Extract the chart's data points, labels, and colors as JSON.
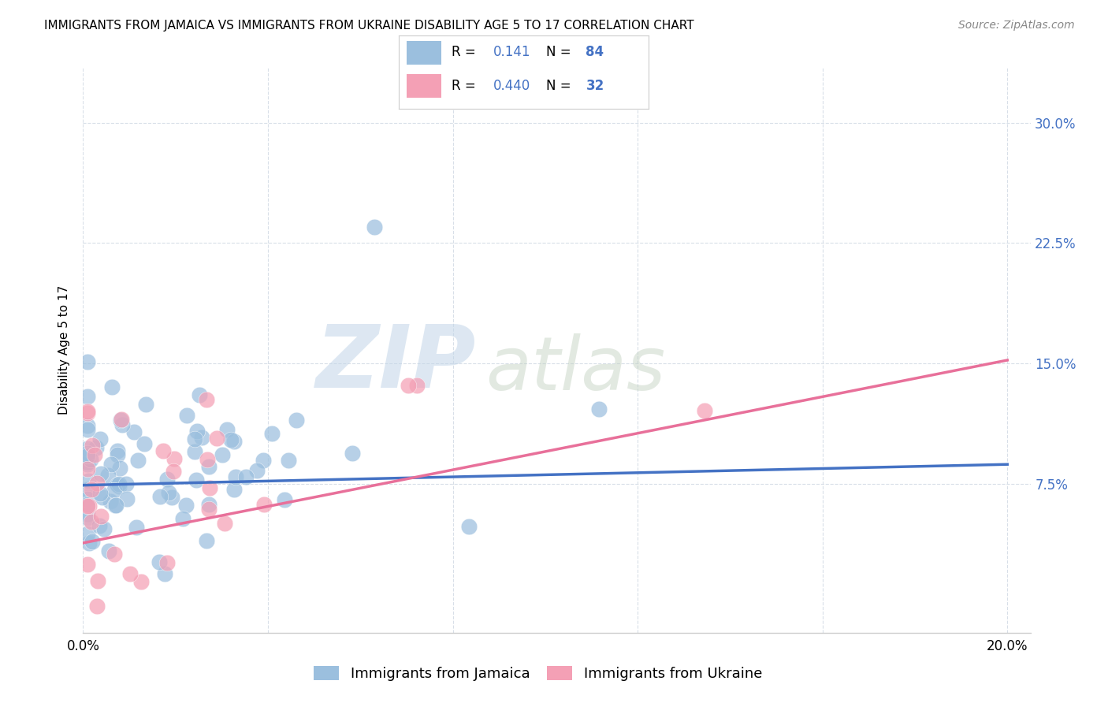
{
  "title": "IMMIGRANTS FROM JAMAICA VS IMMIGRANTS FROM UKRAINE DISABILITY AGE 5 TO 17 CORRELATION CHART",
  "source": "Source: ZipAtlas.com",
  "ylabel": "Disability Age 5 to 17",
  "xlim": [
    0.0,
    0.205
  ],
  "ylim": [
    -0.018,
    0.335
  ],
  "xticks": [
    0.0,
    0.04,
    0.08,
    0.12,
    0.16,
    0.2
  ],
  "xticklabels": [
    "0.0%",
    "",
    "",
    "",
    "",
    "20.0%"
  ],
  "yticks": [
    0.075,
    0.15,
    0.225,
    0.3
  ],
  "yticklabels": [
    "7.5%",
    "15.0%",
    "22.5%",
    "30.0%"
  ],
  "jamaica_R": 0.141,
  "jamaica_N": 84,
  "ukraine_R": 0.44,
  "ukraine_N": 32,
  "jamaica_color": "#9bbfde",
  "ukraine_color": "#f4a0b5",
  "jamaica_line_color": "#4472c4",
  "ukraine_line_color": "#e8709a",
  "background_color": "#ffffff",
  "grid_color": "#d8dfe8",
  "title_fontsize": 11,
  "tick_fontsize": 12,
  "ylabel_fontsize": 11,
  "legend_fontsize": 13,
  "jamaica_line_start_y": 0.074,
  "jamaica_line_end_y": 0.087,
  "ukraine_line_start_y": 0.038,
  "ukraine_line_end_y": 0.152
}
